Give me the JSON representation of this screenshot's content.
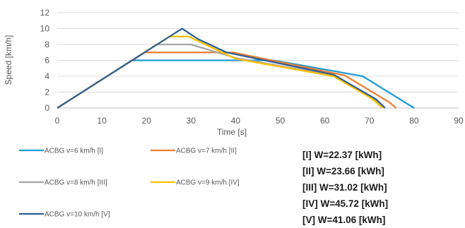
{
  "chart_data": {
    "type": "line",
    "title": "",
    "xlabel": "Time [s]",
    "ylabel": "Speed [km/h]",
    "xlim": [
      0,
      90
    ],
    "ylim": [
      0,
      12
    ],
    "xticks": [
      "0",
      "10",
      "20",
      "30",
      "40",
      "50",
      "60",
      "70",
      "80",
      "90"
    ],
    "yticks": [
      "0",
      "2",
      "4",
      "6",
      "8",
      "10",
      "12"
    ],
    "grid": "horizontal",
    "legend_placement": "bottom-left",
    "series": [
      {
        "name": "ACBG v=6 km/h [I]",
        "color": "#1f9bd7",
        "points": [
          [
            0,
            0
          ],
          [
            16.7,
            6
          ],
          [
            48.5,
            6
          ],
          [
            68.5,
            4
          ],
          [
            80,
            0
          ]
        ]
      },
      {
        "name": "ACBG v=7 km/h [II]",
        "color": "#ed7d31",
        "points": [
          [
            0,
            0
          ],
          [
            19.6,
            7
          ],
          [
            39.5,
            7
          ],
          [
            64.5,
            4.1
          ],
          [
            74.5,
            0.7
          ],
          [
            76,
            0
          ]
        ]
      },
      {
        "name": "ACBG v=8 km/h [III]",
        "color": "#a5a5a5",
        "points": [
          [
            0,
            0
          ],
          [
            22.3,
            8
          ],
          [
            30,
            8
          ],
          [
            40,
            6.3
          ],
          [
            62,
            4.1
          ],
          [
            71,
            1.1
          ],
          [
            73.5,
            0
          ]
        ]
      },
      {
        "name": "ACBG v=9 km/h [IV]",
        "color": "#ffc000",
        "points": [
          [
            0,
            0
          ],
          [
            25.1,
            9
          ],
          [
            29.5,
            9
          ],
          [
            40,
            6.2
          ],
          [
            62,
            4
          ],
          [
            70.5,
            1.2
          ],
          [
            73,
            0
          ]
        ]
      },
      {
        "name": "ACBG v=10 km/h [V]",
        "color": "#2e5f95",
        "points": [
          [
            0,
            0
          ],
          [
            28,
            10
          ],
          [
            31.5,
            8.7
          ],
          [
            38,
            7
          ],
          [
            62,
            4.2
          ],
          [
            71.5,
            1.1
          ],
          [
            73.5,
            0
          ]
        ]
      }
    ],
    "annotations": [
      "[I] W=22.37 [kWh]",
      "[II] W=23.66 [kWh]",
      "[III] W=31.02 [kWh]",
      "[IV] W=45.72 [kWh]",
      "[V] W=41.06 [kWh]"
    ]
  }
}
